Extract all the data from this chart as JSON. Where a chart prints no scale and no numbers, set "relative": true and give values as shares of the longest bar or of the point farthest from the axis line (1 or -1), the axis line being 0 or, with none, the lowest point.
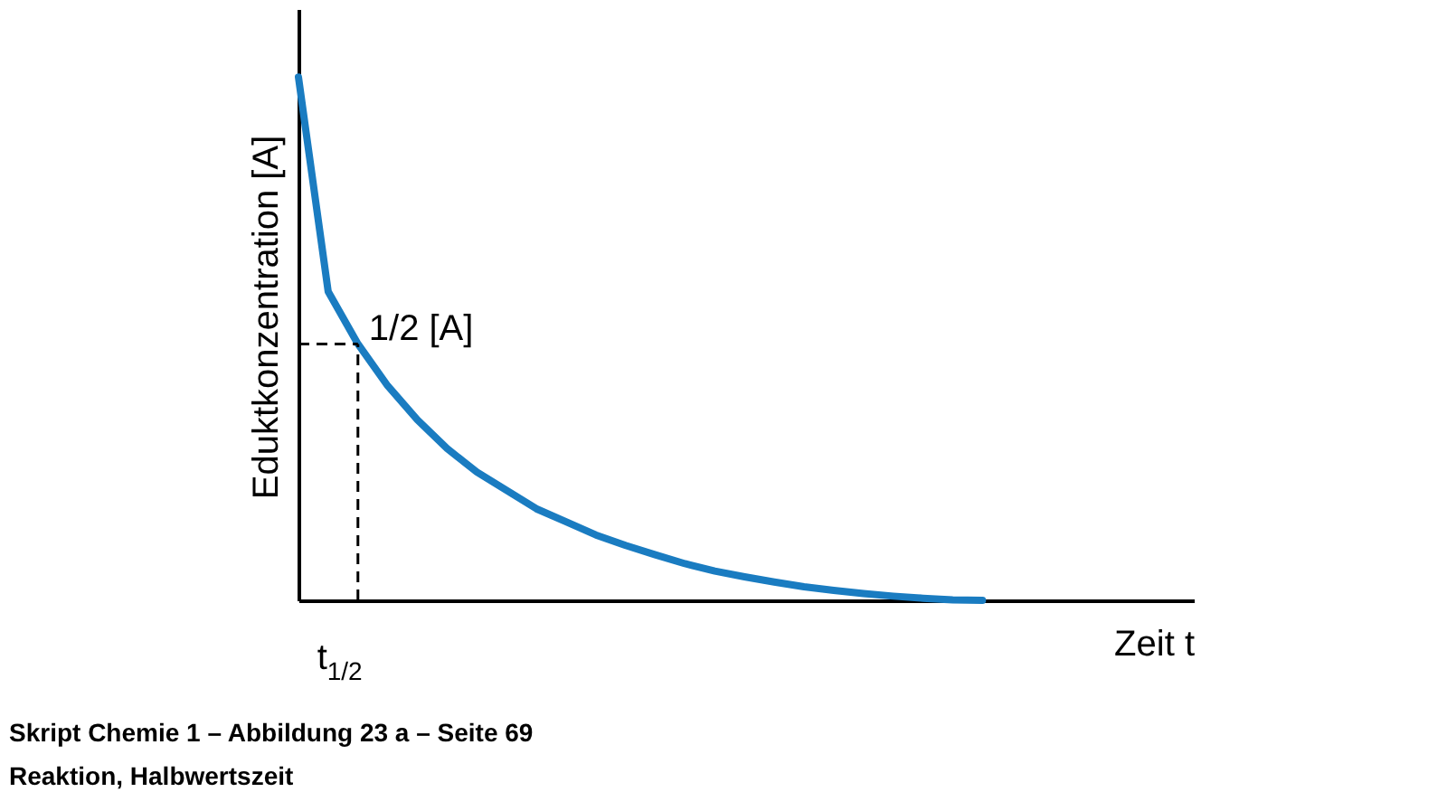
{
  "chart_data": {
    "type": "line",
    "relative": true,
    "title": "Skript Chemie 1 – Abbildung 23 a – Seite 69",
    "subtitle": "Reaktion, Halbwertszeit",
    "xlabel": "Zeit  t",
    "ylabel": "Eduktkonzentration [A]",
    "categories": [
      null,
      null,
      null,
      null,
      null,
      null,
      null,
      null,
      null,
      null,
      null,
      null,
      null,
      null,
      null,
      null,
      null,
      null,
      null,
      null,
      null,
      null,
      null,
      null
    ],
    "series": [
      {
        "color": "#1a7cc1",
        "values": [
          1,
          0.59,
          0.49,
          0.41,
          0.345,
          0.29,
          0.245,
          0.21,
          0.175,
          0.15,
          0.125,
          0.105,
          0.087,
          0.07,
          0.056,
          0.045,
          0.035,
          0.026,
          0.019,
          0.013,
          0.008,
          0.004,
          0.001,
          0
        ]
      }
    ],
    "annotations": [
      "1/2 [A]",
      "t$_{1/2}$"
    ],
    "marker": "none",
    "line_style": "solid"
  }
}
